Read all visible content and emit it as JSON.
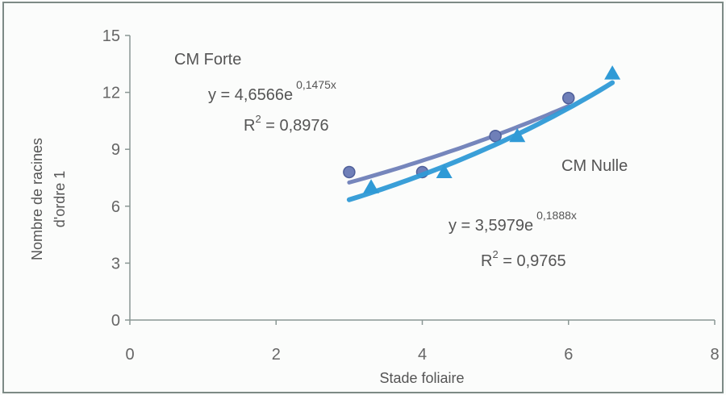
{
  "chart_data": {
    "type": "scatter",
    "xlabel": "Stade foliaire",
    "ylabel_lines": [
      "Nombre de racines",
      "d'ordre 1"
    ],
    "xlim": [
      0,
      8
    ],
    "ylim": [
      0,
      15
    ],
    "x_ticks": [
      0,
      2,
      4,
      6,
      8
    ],
    "y_ticks": [
      0,
      3,
      6,
      9,
      12,
      15
    ],
    "grid": false,
    "series": [
      {
        "name": "CM Forte",
        "marker": "circle",
        "color": "#6f7fb8",
        "points": [
          [
            3.0,
            7.8
          ],
          [
            4.0,
            7.8
          ],
          [
            5.0,
            9.7
          ],
          [
            6.0,
            11.7
          ]
        ],
        "trendline": {
          "type": "exponential",
          "a": 4.6566,
          "b": 0.1475,
          "x_range": [
            3.0,
            6.0
          ]
        },
        "equation": "y = 4,6566e",
        "exponent": "0,1475x",
        "r2_prefix": "R",
        "r2_value": " = 0,8976"
      },
      {
        "name": "CM Nulle",
        "marker": "triangle",
        "color": "#2f9ad6",
        "points": [
          [
            3.3,
            7.0
          ],
          [
            4.3,
            7.8
          ],
          [
            5.3,
            9.7
          ],
          [
            6.6,
            13.0
          ]
        ],
        "trendline": {
          "type": "exponential",
          "a": 3.5979,
          "b": 0.1888,
          "x_range": [
            3.0,
            6.6
          ]
        },
        "equation": "y = 3,5979e",
        "exponent": "0,1888x",
        "r2_prefix": "R",
        "r2_value": " = 0,9765"
      }
    ]
  },
  "superscript_two": "2"
}
